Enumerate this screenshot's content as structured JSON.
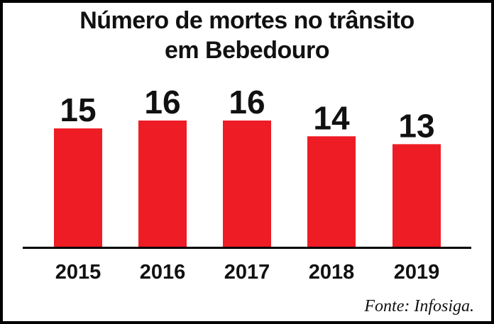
{
  "title_line1": "Número de mortes no trânsito",
  "title_line2": "em Bebedouro",
  "source": "Fonte: Infosiga.",
  "colors": {
    "bar": "#ee1c25",
    "text": "#111111",
    "axis": "#000000"
  },
  "chart_data": {
    "type": "bar",
    "categories": [
      "2015",
      "2016",
      "2017",
      "2018",
      "2019"
    ],
    "values": [
      15,
      16,
      16,
      14,
      13
    ],
    "title": "Número de mortes no trânsito em Bebedouro",
    "xlabel": "",
    "ylabel": "",
    "ylim": [
      0,
      16
    ],
    "grid": false,
    "data_labels": true
  }
}
